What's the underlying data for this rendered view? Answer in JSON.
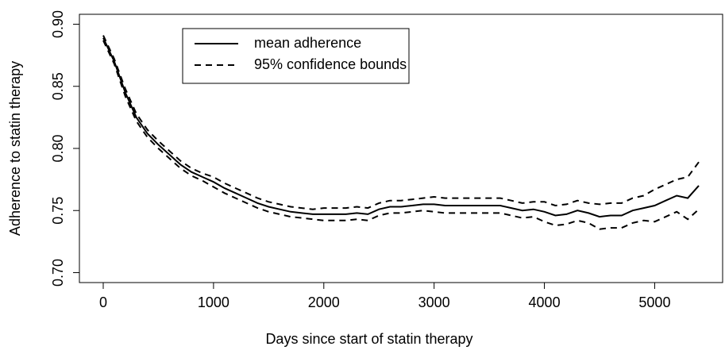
{
  "chart_data": {
    "type": "line",
    "xlabel": "Days since start of statin therapy",
    "ylabel": "Adherence to statin therapy",
    "x": [
      0,
      100,
      200,
      300,
      400,
      500,
      600,
      700,
      800,
      900,
      1000,
      1100,
      1200,
      1300,
      1400,
      1500,
      1600,
      1700,
      1800,
      1900,
      2000,
      2100,
      2200,
      2300,
      2400,
      2500,
      2600,
      2700,
      2800,
      2900,
      3000,
      3100,
      3200,
      3300,
      3400,
      3500,
      3600,
      3700,
      3800,
      3900,
      4000,
      4100,
      4200,
      4300,
      4400,
      4500,
      4600,
      4700,
      4800,
      4900,
      5000,
      5100,
      5200,
      5300,
      5400
    ],
    "series": [
      {
        "name": "mean adherence",
        "color": "#000000",
        "line_style": "solid",
        "values": [
          0.889,
          0.87,
          0.845,
          0.825,
          0.812,
          0.803,
          0.795,
          0.787,
          0.781,
          0.777,
          0.773,
          0.768,
          0.764,
          0.76,
          0.756,
          0.753,
          0.751,
          0.749,
          0.748,
          0.747,
          0.747,
          0.747,
          0.747,
          0.748,
          0.747,
          0.751,
          0.753,
          0.753,
          0.754,
          0.755,
          0.755,
          0.754,
          0.754,
          0.754,
          0.754,
          0.754,
          0.754,
          0.752,
          0.75,
          0.751,
          0.749,
          0.746,
          0.747,
          0.75,
          0.748,
          0.745,
          0.746,
          0.746,
          0.75,
          0.752,
          0.754,
          0.758,
          0.762,
          0.76,
          0.77
        ]
      },
      {
        "name": "95% confidence bounds",
        "color": "#000000",
        "line_style": "dashed",
        "upper": [
          0.891,
          0.872,
          0.848,
          0.828,
          0.815,
          0.806,
          0.798,
          0.79,
          0.784,
          0.78,
          0.777,
          0.772,
          0.768,
          0.764,
          0.76,
          0.757,
          0.755,
          0.753,
          0.752,
          0.751,
          0.752,
          0.752,
          0.752,
          0.753,
          0.752,
          0.756,
          0.758,
          0.758,
          0.759,
          0.76,
          0.761,
          0.76,
          0.76,
          0.76,
          0.76,
          0.76,
          0.76,
          0.758,
          0.756,
          0.757,
          0.757,
          0.754,
          0.755,
          0.758,
          0.756,
          0.755,
          0.756,
          0.756,
          0.76,
          0.762,
          0.767,
          0.771,
          0.775,
          0.777,
          0.789
        ],
        "lower": [
          0.887,
          0.868,
          0.842,
          0.822,
          0.809,
          0.8,
          0.792,
          0.784,
          0.778,
          0.774,
          0.769,
          0.764,
          0.76,
          0.756,
          0.752,
          0.749,
          0.747,
          0.745,
          0.744,
          0.743,
          0.742,
          0.742,
          0.742,
          0.743,
          0.742,
          0.746,
          0.748,
          0.748,
          0.749,
          0.75,
          0.749,
          0.748,
          0.748,
          0.748,
          0.748,
          0.748,
          0.748,
          0.746,
          0.744,
          0.745,
          0.741,
          0.738,
          0.739,
          0.742,
          0.74,
          0.735,
          0.736,
          0.736,
          0.74,
          0.742,
          0.741,
          0.745,
          0.749,
          0.743,
          0.751
        ]
      }
    ],
    "xlim": [
      -216,
      5616
    ],
    "xticks": [
      0,
      1000,
      2000,
      3000,
      4000,
      5000
    ],
    "ylim": [
      0.692,
      0.908
    ],
    "yticks": [
      {
        "value": 0.7,
        "label": "0.70"
      },
      0.75,
      {
        "value": 0.8,
        "label": "0.80"
      },
      0.85,
      {
        "value": 0.9,
        "label": "0.90"
      }
    ],
    "grid": false,
    "legend": "top"
  }
}
